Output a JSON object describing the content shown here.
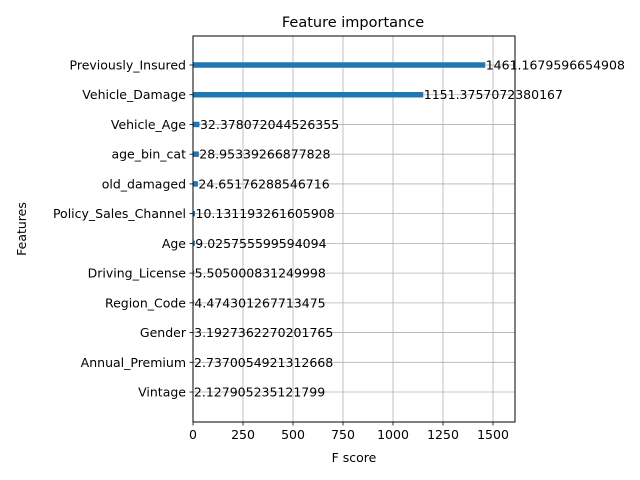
{
  "chart_data": {
    "type": "bar",
    "orientation": "horizontal",
    "title": "Feature importance",
    "xlabel": "F score",
    "ylabel": "Features",
    "xlim": [
      0,
      1610
    ],
    "xticks": [
      0,
      250,
      500,
      750,
      1000,
      1250,
      1500
    ],
    "grid": true,
    "bar_color": "#1f77b4",
    "categories": [
      "Previously_Insured",
      "Vehicle_Damage",
      "Vehicle_Age",
      "age_bin_cat",
      "old_damaged",
      "Policy_Sales_Channel",
      "Age",
      "Driving_License",
      "Region_Code",
      "Gender",
      "Annual_Premium",
      "Vintage"
    ],
    "values": [
      1461.1679596654908,
      1151.3757072380167,
      32.378072044526355,
      28.95339266877828,
      24.65176288546716,
      10.131193261605908,
      9.025755599594094,
      5.505000831249998,
      4.474301267713475,
      3.1927362270201765,
      2.7370054921312668,
      2.127905235121799
    ],
    "value_labels": [
      "1461.1679596654908",
      "1151.3757072380167",
      "32.378072044526355",
      "28.95339266877828",
      "24.65176288546716",
      "10.131193261605908",
      "9.025755599594094",
      "5.505000831249998",
      "4.474301267713475",
      "3.1927362270201765",
      "2.7370054921312668",
      "2.127905235121799"
    ]
  }
}
